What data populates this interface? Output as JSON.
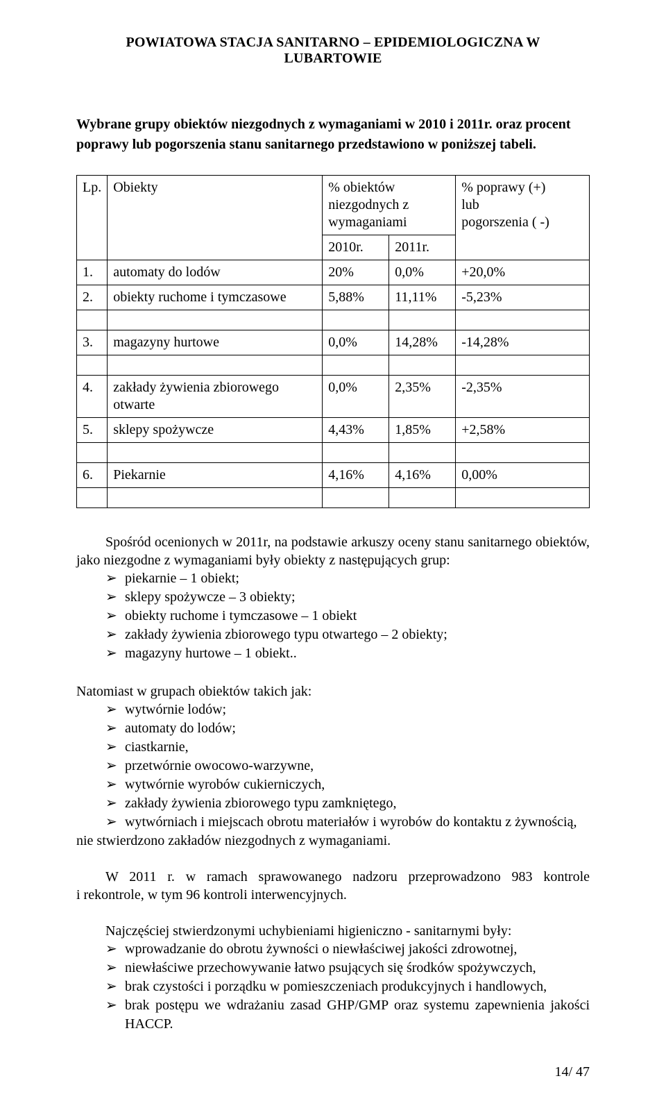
{
  "header": {
    "title": "POWIATOWA STACJA SANITARNO – EPIDEMIOLOGICZNA W LUBARTOWIE"
  },
  "section": {
    "line1": "Wybrane grupy obiektów niezgodnych z wymaganiami w 2010 i 2011r. oraz procent",
    "line2": "poprawy lub pogorszenia stanu sanitarnego przedstawiono w poniższej tabeli."
  },
  "table": {
    "columns": {
      "lp": "Lp.",
      "obiekty": "Obiekty",
      "niezgodne_top": "% obiektów niezgodnych z wymaganiami",
      "y2010": "2010r.",
      "y2011": "2011r.",
      "change_top1": "% poprawy (+)",
      "change_top2": "lub",
      "change_top3": "pogorszenia ( -)"
    },
    "rows": [
      {
        "lp": "1.",
        "ob": "automaty do lodów",
        "y1": "20%",
        "y2": "0,0%",
        "ch": "+20,0%"
      },
      {
        "lp": "2.",
        "ob": "obiekty ruchome i tymczasowe",
        "y1": "5,88%",
        "y2": "11,11%",
        "ch": "-5,23%"
      },
      {
        "lp": "3.",
        "ob": "magazyny hurtowe",
        "y1": "0,0%",
        "y2": "14,28%",
        "ch": "-14,28%"
      },
      {
        "lp": "4.",
        "ob": "zakłady żywienia zbiorowego otwarte",
        "y1": "0,0%",
        "y2": "2,35%",
        "ch": "-2,35%"
      },
      {
        "lp": "5.",
        "ob": "sklepy spożywcze",
        "y1": "4,43%",
        "y2": "1,85%",
        "ch": "+2,58%"
      },
      {
        "lp": "6.",
        "ob": "Piekarnie",
        "y1": "4,16%",
        "y2": "4,16%",
        "ch": "0,00%"
      }
    ]
  },
  "body": {
    "p1": "Spośród ocenionych w 2011r, na podstawie arkuszy oceny stanu sanitarnego obiektów, jako niezgodne z wymaganiami były obiekty  z następujących grup:",
    "list1": [
      "piekarnie – 1 obiekt;",
      "sklepy spożywcze – 3 obiekty;",
      "obiekty ruchome i tymczasowe – 1 obiekt",
      "zakłady żywienia zbiorowego typu otwartego – 2 obiekty;",
      "magazyny hurtowe – 1 obiekt.."
    ],
    "p2": "Natomiast w grupach obiektów takich jak:",
    "list2": [
      "wytwórnie lodów;",
      "automaty do lodów;",
      "ciastkarnie,",
      "przetwórnie owocowo-warzywne,",
      "wytwórnie wyrobów cukierniczych,",
      "zakłady żywienia zbiorowego typu zamkniętego,",
      "wytwórniach i miejscach obrotu materiałów i wyrobów do kontaktu z żywnością,"
    ],
    "p2_after": "nie stwierdzono zakładów niezgodnych z wymaganiami.",
    "p3": "W 2011 r. w ramach sprawowanego nadzoru przeprowadzono 983 kontrole i rekontrole, w tym 96 kontroli interwencyjnych.",
    "p4": "Najczęściej stwierdzonymi uchybieniami higieniczno - sanitarnymi były:",
    "list3": [
      "wprowadzanie do obrotu żywności o niewłaściwej jakości zdrowotnej,",
      "niewłaściwe przechowywanie łatwo psujących się środków spożywczych,",
      "brak czystości i porządku w pomieszczeniach produkcyjnych i handlowych,",
      "brak postępu we wdrażaniu zasad GHP/GMP oraz systemu zapewnienia jakości HACCP."
    ]
  },
  "footer": {
    "page": "14/ 47"
  }
}
